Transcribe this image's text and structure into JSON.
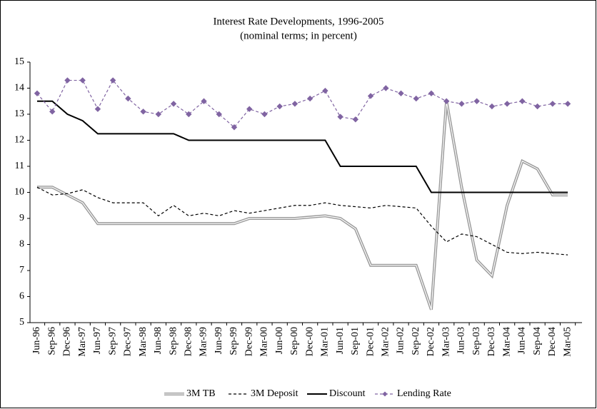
{
  "chart_data": {
    "type": "line",
    "title": "Interest Rate Developments, 1996-2005",
    "subtitle": "(nominal terms; in percent)",
    "categories": [
      "Jun-96",
      "Sep-96",
      "Dec-96",
      "Mar-97",
      "Jun-97",
      "Sep-97",
      "Dec-97",
      "Mar-98",
      "Jun-98",
      "Sep-98",
      "Dec-98",
      "Mar-99",
      "Jun-99",
      "Sep-99",
      "Dec-99",
      "Mar-00",
      "Jun-00",
      "Sep-00",
      "Dec-00",
      "Mar-01",
      "Jun-01",
      "Sep-01",
      "Dec-01",
      "Mar-02",
      "Jun-02",
      "Sep-02",
      "Dec-02",
      "Mar-03",
      "Jun-03",
      "Sep-03",
      "Dec-03",
      "Mar-04",
      "Jun-04",
      "Sep-04",
      "Dec-04",
      "Mar-05"
    ],
    "series": [
      {
        "name": "3M TB",
        "color": "#999999",
        "style": "double",
        "values": [
          10.2,
          10.2,
          9.9,
          9.6,
          8.8,
          8.8,
          8.8,
          8.8,
          8.8,
          8.8,
          8.8,
          8.8,
          8.8,
          8.8,
          9.0,
          9.0,
          9.0,
          9.0,
          9.05,
          9.1,
          9.0,
          8.6,
          7.2,
          7.2,
          7.2,
          7.2,
          5.5,
          13.5,
          10.2,
          7.4,
          6.8,
          9.5,
          11.2,
          10.9,
          9.9,
          9.9
        ]
      },
      {
        "name": "3M Deposit",
        "color": "#000000",
        "style": "dashed",
        "values": [
          10.2,
          9.9,
          9.95,
          10.1,
          9.8,
          9.6,
          9.6,
          9.6,
          9.1,
          9.5,
          9.1,
          9.2,
          9.1,
          9.3,
          9.2,
          9.3,
          9.4,
          9.5,
          9.5,
          9.6,
          9.5,
          9.45,
          9.4,
          9.5,
          9.45,
          9.4,
          8.7,
          8.1,
          8.4,
          8.3,
          8.0,
          7.7,
          7.65,
          7.7,
          7.65,
          7.6
        ]
      },
      {
        "name": "Discount",
        "color": "#000000",
        "style": "solid",
        "values": [
          13.5,
          13.5,
          13.0,
          12.75,
          12.25,
          12.25,
          12.25,
          12.25,
          12.25,
          12.25,
          12.0,
          12.0,
          12.0,
          12.0,
          12.0,
          12.0,
          12.0,
          12.0,
          12.0,
          12.0,
          11.0,
          11.0,
          11.0,
          11.0,
          11.0,
          11.0,
          10.0,
          10.0,
          10.0,
          10.0,
          10.0,
          10.0,
          10.0,
          10.0,
          10.0,
          10.0
        ]
      },
      {
        "name": "Lending Rate",
        "color": "#8064a2",
        "style": "dashed-marker",
        "values": [
          13.8,
          13.1,
          14.3,
          14.3,
          13.2,
          14.3,
          13.6,
          13.1,
          13.0,
          13.4,
          13.0,
          13.5,
          13.0,
          12.5,
          13.2,
          13.0,
          13.3,
          13.4,
          13.6,
          13.9,
          12.9,
          12.8,
          13.7,
          14.0,
          13.8,
          13.6,
          13.8,
          13.5,
          13.4,
          13.5,
          13.3,
          13.4,
          13.5,
          13.3,
          13.4,
          13.4
        ]
      }
    ],
    "ylim": [
      5,
      15
    ],
    "yticks": [
      5,
      6,
      7,
      8,
      9,
      10,
      11,
      12,
      13,
      14,
      15
    ],
    "legend": "bottom"
  }
}
